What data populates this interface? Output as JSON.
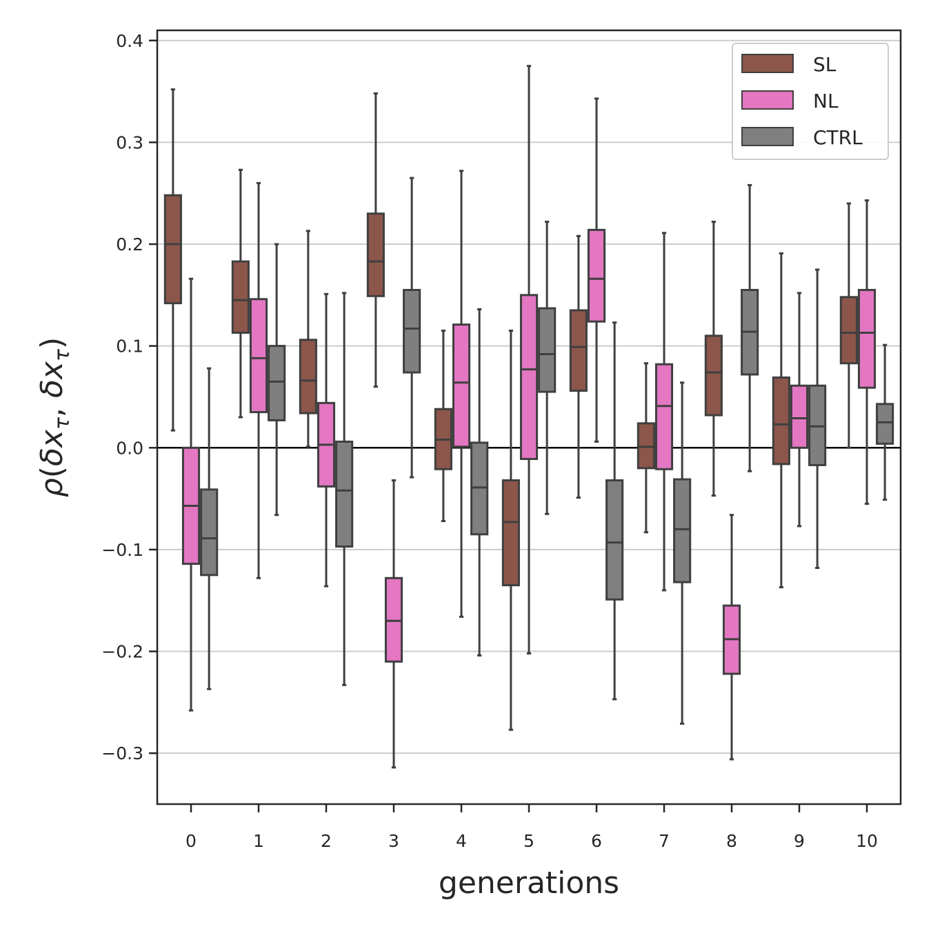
{
  "chart_data": {
    "type": "box",
    "xlabel": "generations",
    "ylabel": "ρ(δx_τ, δx_τ)",
    "ylabel_parts": {
      "rho": "ρ",
      "open": "(",
      "d1": "δ",
      "x1": "x",
      "t1": "τ",
      "comma": ", ",
      "d2": "δ",
      "x2": "x",
      "t2": "τ",
      "close": ")"
    },
    "ylim": [
      -0.35,
      0.41
    ],
    "yticks": [
      -0.3,
      -0.2,
      -0.1,
      0.0,
      0.1,
      0.2,
      0.3,
      0.4
    ],
    "ytick_labels": [
      "−0.3",
      "−0.2",
      "−0.1",
      "0.0",
      "0.1",
      "0.2",
      "0.3",
      "0.4"
    ],
    "categories": [
      "0",
      "1",
      "2",
      "3",
      "4",
      "5",
      "6",
      "7",
      "8",
      "9",
      "10"
    ],
    "grid": "horizontal",
    "reference_line": 0.0,
    "legend_position": "top-right",
    "series": [
      {
        "name": "SL",
        "color": "#8c564b",
        "boxes": [
          {
            "whislo": 0.017,
            "q1": 0.142,
            "med": 0.2,
            "q3": 0.248,
            "whishi": 0.352
          },
          {
            "whislo": 0.03,
            "q1": 0.113,
            "med": 0.145,
            "q3": 0.183,
            "whishi": 0.273
          },
          {
            "whislo": 0.001,
            "q1": 0.034,
            "med": 0.066,
            "q3": 0.106,
            "whishi": 0.213
          },
          {
            "whislo": 0.06,
            "q1": 0.149,
            "med": 0.183,
            "q3": 0.23,
            "whishi": 0.348
          },
          {
            "whislo": -0.072,
            "q1": -0.021,
            "med": 0.008,
            "q3": 0.038,
            "whishi": 0.115
          },
          {
            "whislo": -0.277,
            "q1": -0.135,
            "med": -0.073,
            "q3": -0.032,
            "whishi": 0.115
          },
          {
            "whislo": -0.049,
            "q1": 0.056,
            "med": 0.099,
            "q3": 0.135,
            "whishi": 0.208
          },
          {
            "whislo": -0.083,
            "q1": -0.02,
            "med": 0.001,
            "q3": 0.024,
            "whishi": 0.083
          },
          {
            "whislo": -0.047,
            "q1": 0.032,
            "med": 0.074,
            "q3": 0.11,
            "whishi": 0.222
          },
          {
            "whislo": -0.137,
            "q1": -0.016,
            "med": 0.023,
            "q3": 0.069,
            "whishi": 0.191
          },
          {
            "whislo": 0.0,
            "q1": 0.083,
            "med": 0.113,
            "q3": 0.148,
            "whishi": 0.24
          }
        ]
      },
      {
        "name": "NL",
        "color": "#e377c2",
        "boxes": [
          {
            "whislo": -0.258,
            "q1": -0.114,
            "med": -0.057,
            "q3": 0.0,
            "whishi": 0.166
          },
          {
            "whislo": -0.128,
            "q1": 0.035,
            "med": 0.088,
            "q3": 0.146,
            "whishi": 0.26
          },
          {
            "whislo": -0.136,
            "q1": -0.038,
            "med": 0.003,
            "q3": 0.044,
            "whishi": 0.151
          },
          {
            "whislo": -0.314,
            "q1": -0.21,
            "med": -0.17,
            "q3": -0.128,
            "whishi": -0.032
          },
          {
            "whislo": -0.166,
            "q1": 0.001,
            "med": 0.064,
            "q3": 0.121,
            "whishi": 0.272
          },
          {
            "whislo": -0.202,
            "q1": -0.011,
            "med": 0.077,
            "q3": 0.15,
            "whishi": 0.375
          },
          {
            "whislo": 0.006,
            "q1": 0.124,
            "med": 0.166,
            "q3": 0.214,
            "whishi": 0.343
          },
          {
            "whislo": -0.14,
            "q1": -0.021,
            "med": 0.041,
            "q3": 0.082,
            "whishi": 0.211
          },
          {
            "whislo": -0.306,
            "q1": -0.222,
            "med": -0.188,
            "q3": -0.155,
            "whishi": -0.066
          },
          {
            "whislo": -0.077,
            "q1": 0.0,
            "med": 0.029,
            "q3": 0.061,
            "whishi": 0.152
          },
          {
            "whislo": -0.055,
            "q1": 0.059,
            "med": 0.113,
            "q3": 0.155,
            "whishi": 0.243
          }
        ]
      },
      {
        "name": "CTRL",
        "color": "#7f7f7f",
        "boxes": [
          {
            "whislo": -0.237,
            "q1": -0.125,
            "med": -0.089,
            "q3": -0.041,
            "whishi": 0.078
          },
          {
            "whislo": -0.066,
            "q1": 0.027,
            "med": 0.065,
            "q3": 0.1,
            "whishi": 0.2
          },
          {
            "whislo": -0.233,
            "q1": -0.097,
            "med": -0.042,
            "q3": 0.006,
            "whishi": 0.152
          },
          {
            "whislo": -0.029,
            "q1": 0.074,
            "med": 0.117,
            "q3": 0.155,
            "whishi": 0.265
          },
          {
            "whislo": -0.204,
            "q1": -0.085,
            "med": -0.039,
            "q3": 0.005,
            "whishi": 0.136
          },
          {
            "whislo": -0.065,
            "q1": 0.055,
            "med": 0.092,
            "q3": 0.137,
            "whishi": 0.222
          },
          {
            "whislo": -0.247,
            "q1": -0.149,
            "med": -0.093,
            "q3": -0.032,
            "whishi": 0.123
          },
          {
            "whislo": -0.271,
            "q1": -0.132,
            "med": -0.08,
            "q3": -0.031,
            "whishi": 0.064
          },
          {
            "whislo": -0.023,
            "q1": 0.072,
            "med": 0.114,
            "q3": 0.155,
            "whishi": 0.258
          },
          {
            "whislo": -0.118,
            "q1": -0.017,
            "med": 0.021,
            "q3": 0.061,
            "whishi": 0.175
          },
          {
            "whislo": -0.051,
            "q1": 0.004,
            "med": 0.025,
            "q3": 0.043,
            "whishi": 0.101
          }
        ]
      }
    ]
  }
}
